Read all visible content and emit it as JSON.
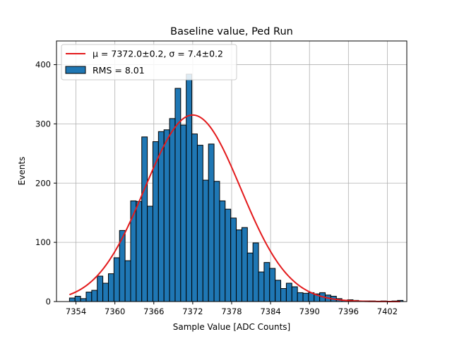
{
  "chart_data": {
    "type": "bar",
    "title": "Baseline value, Ped Run",
    "xlabel": "Sample Value [ADC Counts]",
    "ylabel": "Events",
    "xlim": [
      7351,
      7405
    ],
    "ylim": [
      0,
      440
    ],
    "xticks": [
      7354,
      7360,
      7366,
      7372,
      7378,
      7384,
      7390,
      7396,
      7402
    ],
    "yticks": [
      0,
      100,
      200,
      300,
      400
    ],
    "grid": true,
    "legend_position": "top-left",
    "bin_width": 0.857,
    "bins": {
      "x_start": [
        7353.0,
        7353.857,
        7354.714,
        7355.571,
        7356.429,
        7357.286,
        7358.143,
        7359.0,
        7359.857,
        7360.714,
        7361.571,
        7362.429,
        7363.286,
        7364.143,
        7365.0,
        7365.857,
        7366.714,
        7367.571,
        7368.429,
        7369.286,
        7370.143,
        7371.0,
        7371.857,
        7372.714,
        7373.571,
        7374.429,
        7375.286,
        7376.143,
        7377.0,
        7377.857,
        7378.714,
        7379.571,
        7380.429,
        7381.286,
        7382.143,
        7383.0,
        7383.857,
        7384.714,
        7385.571,
        7386.429,
        7387.286,
        7388.143,
        7389.0,
        7389.857,
        7390.714,
        7391.571,
        7392.429,
        7393.286,
        7394.143,
        7395.0,
        7395.857,
        7396.714,
        7397.571,
        7398.429,
        7399.286,
        7400.143,
        7401.0,
        7401.857,
        7402.714,
        7403.571
      ],
      "values": [
        6,
        9,
        5,
        16,
        19,
        43,
        31,
        47,
        74,
        120,
        69,
        170,
        169,
        278,
        161,
        270,
        287,
        290,
        309,
        360,
        298,
        384,
        283,
        264,
        205,
        266,
        203,
        170,
        156,
        141,
        121,
        125,
        82,
        99,
        50,
        66,
        56,
        36,
        22,
        31,
        25,
        15,
        14,
        15,
        13,
        15,
        11,
        9,
        5,
        2,
        3,
        2,
        1,
        1,
        1,
        0,
        1,
        0,
        1,
        2
      ]
    },
    "series": [
      {
        "name": "RMS = 8.01",
        "kind": "histogram",
        "color": "#1f77b4"
      },
      {
        "name": "fit",
        "legend_label": "μ = 7372.0±0.2, σ = 7.4±0.2",
        "kind": "gaussian-fit",
        "color": "#e31a1c",
        "mu": 7372.0,
        "sigma": 7.4,
        "amplitude": 315,
        "x_range": [
          7353,
          7404
        ]
      }
    ]
  }
}
